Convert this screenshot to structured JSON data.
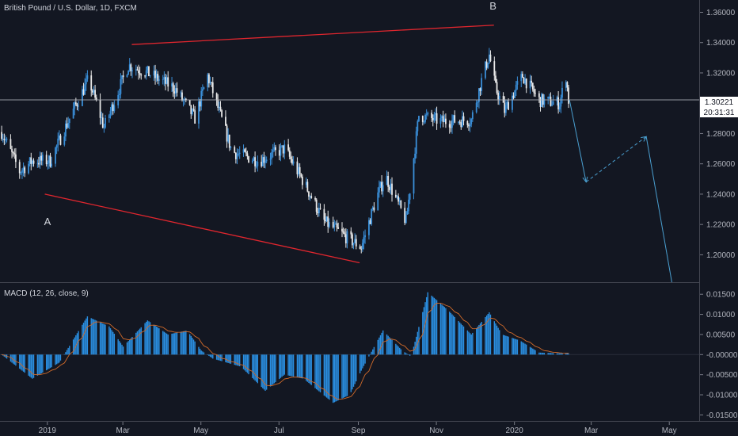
{
  "symbol_title": "British Pound / U.S. Dollar, 1D, FXCM",
  "colors": {
    "background": "#131722",
    "candle_up": "#3a8fd9",
    "candle_down": "#e9e9e9",
    "wedge_line": "#e0262e",
    "projection": "#4a9fd0",
    "macd_hist": "#2a8ee0",
    "signal": "#d06a2a",
    "price_line": "#b2b5be"
  },
  "price_label": {
    "price": "1.30221",
    "countdown": "20:31:31",
    "value": 1.30221
  },
  "annotations": [
    {
      "label": "A",
      "date": "2018-12-29",
      "price": 1.2305
    },
    {
      "label": "B",
      "date": "2019-12-14",
      "price": 1.3678
    }
  ],
  "macd_label": "MACD (12, 26, close, 9)",
  "chart_data": [
    {
      "type": "candlestick",
      "title": "British Pound / U.S. Dollar, 1D, FXCM",
      "x_range": [
        "2018-11-25",
        "2020-05-25"
      ],
      "y_range": [
        1.1819,
        1.3681
      ],
      "y_ticks": [
        "1.36000",
        "1.34000",
        "1.32000",
        "1.30000",
        "1.28000",
        "1.26000",
        "1.24000",
        "1.22000",
        "1.20000"
      ],
      "x_ticks": [
        "2019",
        "Mar",
        "May",
        "Jul",
        "Sep",
        "Nov",
        "2020",
        "Mar",
        "May"
      ],
      "x_tick_dates": [
        "2019-01-01",
        "2019-03-01",
        "2019-05-01",
        "2019-07-01",
        "2019-09-01",
        "2019-11-01",
        "2020-01-01",
        "2020-03-01",
        "2020-05-01"
      ],
      "close_path": [
        [
          "2018-11-26",
          1.281
        ],
        [
          "2018-12-10",
          1.255
        ],
        [
          "2018-12-20",
          1.262
        ],
        [
          "2019-01-03",
          1.262
        ],
        [
          "2019-01-18",
          1.29
        ],
        [
          "2019-02-02",
          1.316
        ],
        [
          "2019-02-14",
          1.284
        ],
        [
          "2019-03-05",
          1.325
        ],
        [
          "2019-03-20",
          1.32
        ],
        [
          "2019-04-10",
          1.31
        ],
        [
          "2019-04-26",
          1.29
        ],
        [
          "2019-05-06",
          1.318
        ],
        [
          "2019-05-25",
          1.268
        ],
        [
          "2019-06-15",
          1.262
        ],
        [
          "2019-07-05",
          1.27
        ],
        [
          "2019-07-20",
          1.248
        ],
        [
          "2019-08-05",
          1.222
        ],
        [
          "2019-08-20",
          1.213
        ],
        [
          "2019-09-03",
          1.205
        ],
        [
          "2019-09-15",
          1.238
        ],
        [
          "2019-09-22",
          1.252
        ],
        [
          "2019-10-08",
          1.222
        ],
        [
          "2019-10-18",
          1.292
        ],
        [
          "2019-11-05",
          1.288
        ],
        [
          "2019-11-28",
          1.289
        ],
        [
          "2019-12-06",
          1.315
        ],
        [
          "2019-12-12",
          1.332
        ],
        [
          "2019-12-17",
          1.31
        ],
        [
          "2019-12-24",
          1.295
        ],
        [
          "2020-01-07",
          1.318
        ],
        [
          "2020-01-20",
          1.302
        ],
        [
          "2020-02-05",
          1.3
        ],
        [
          "2020-02-10",
          1.318
        ],
        [
          "2020-02-12",
          1.302
        ]
      ],
      "wedge_lines": [
        {
          "from": [
            "2019-03-08",
            1.3387
          ],
          "to": [
            "2019-12-16",
            1.3515
          ]
        },
        {
          "from": [
            "2018-12-30",
            1.24
          ],
          "to": [
            "2019-09-02",
            1.1947
          ]
        }
      ],
      "projection": [
        [
          "2020-02-13",
          1.3022
        ],
        [
          "2020-02-26",
          1.248
        ],
        [
          "2020-04-13",
          1.278
        ],
        [
          "2020-05-03",
          1.1819
        ]
      ]
    },
    {
      "type": "histogram",
      "title": "MACD (12, 26, close, 9)",
      "y_range": [
        -0.0165,
        0.0178
      ],
      "y_ticks": [
        "0.01500",
        "0.01000",
        "0.00500",
        "-0.00000",
        "-0.00500",
        "-0.01000",
        "-0.01500"
      ],
      "macd_path": [
        [
          "2018-11-26",
          0.0
        ],
        [
          "2018-12-20",
          -0.006
        ],
        [
          "2019-01-10",
          -0.002
        ],
        [
          "2019-02-01",
          0.0095
        ],
        [
          "2019-02-18",
          0.007
        ],
        [
          "2019-03-01",
          0.002
        ],
        [
          "2019-03-20",
          0.0085
        ],
        [
          "2019-04-05",
          0.005
        ],
        [
          "2019-04-20",
          0.006
        ],
        [
          "2019-05-01",
          0.001
        ],
        [
          "2019-05-10",
          -0.001
        ],
        [
          "2019-06-01",
          -0.003
        ],
        [
          "2019-06-20",
          -0.009
        ],
        [
          "2019-07-05",
          -0.005
        ],
        [
          "2019-07-20",
          -0.006
        ],
        [
          "2019-08-12",
          -0.012
        ],
        [
          "2019-08-25",
          -0.01
        ],
        [
          "2019-09-03",
          -0.004
        ],
        [
          "2019-09-20",
          0.006
        ],
        [
          "2019-10-05",
          0.001
        ],
        [
          "2019-10-12",
          -0.0005
        ],
        [
          "2019-10-25",
          0.0155
        ],
        [
          "2019-11-10",
          0.011
        ],
        [
          "2019-11-28",
          0.005
        ],
        [
          "2019-12-12",
          0.0105
        ],
        [
          "2019-12-22",
          0.005
        ],
        [
          "2020-01-05",
          0.0035
        ],
        [
          "2020-01-20",
          0.0005
        ],
        [
          "2020-02-05",
          0.0003
        ],
        [
          "2020-02-12",
          0.0003
        ]
      ]
    }
  ]
}
